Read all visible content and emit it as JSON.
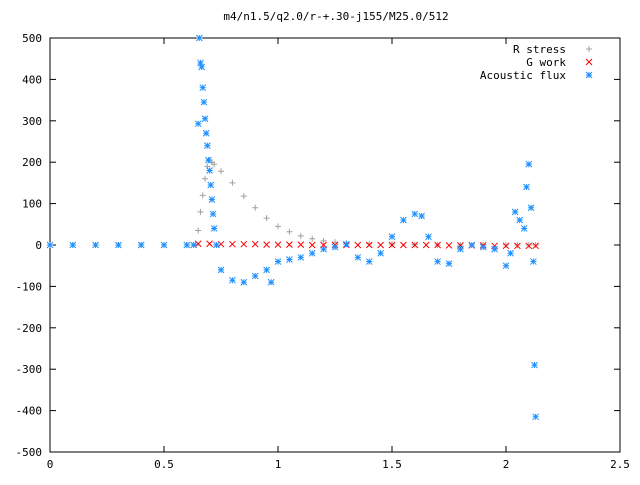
{
  "chart_data": {
    "type": "scatter",
    "title": "m4/n1.5/q2.0/r-+.30-j155/M25.0/512",
    "xlabel": "",
    "ylabel": "",
    "xlim": [
      0,
      2.5
    ],
    "ylim": [
      -500,
      500
    ],
    "x_ticks": [
      0,
      0.5,
      1,
      1.5,
      2,
      2.5
    ],
    "x_tick_labels": [
      "0",
      "0.5",
      "1",
      "1.5",
      "2",
      "2.5"
    ],
    "y_ticks": [
      -500,
      -400,
      -300,
      -200,
      -100,
      0,
      100,
      200,
      300,
      400,
      500
    ],
    "y_tick_labels": [
      "-500",
      "-400",
      "-300",
      "-200",
      "-100",
      "0",
      "100",
      "200",
      "300",
      "400",
      "500"
    ],
    "grid": false,
    "legend_position": "top-right",
    "series": [
      {
        "name": "R stress",
        "marker": "+",
        "color": "#a0a0a0",
        "x": [
          0,
          0.1,
          0.2,
          0.3,
          0.4,
          0.5,
          0.6,
          0.64,
          0.65,
          0.66,
          0.67,
          0.68,
          0.69,
          0.7,
          0.71,
          0.72,
          0.75,
          0.8,
          0.85,
          0.9,
          0.95,
          1.0,
          1.05,
          1.1,
          1.15,
          1.2,
          1.25,
          1.3,
          1.4,
          1.5,
          1.6,
          1.7,
          1.8,
          1.9,
          2.0,
          2.05,
          2.1,
          2.13
        ],
        "y": [
          0,
          0,
          0,
          0,
          0,
          0,
          0,
          0,
          35,
          80,
          120,
          160,
          190,
          205,
          200,
          195,
          178,
          150,
          118,
          90,
          65,
          45,
          32,
          22,
          15,
          10,
          7,
          5,
          3,
          2,
          1,
          0,
          0,
          0,
          0,
          0,
          0,
          0
        ]
      },
      {
        "name": "G work",
        "marker": "x",
        "color": "#ff0000",
        "x": [
          0.65,
          0.7,
          0.75,
          0.8,
          0.85,
          0.9,
          0.95,
          1.0,
          1.05,
          1.1,
          1.15,
          1.2,
          1.25,
          1.3,
          1.35,
          1.4,
          1.45,
          1.5,
          1.55,
          1.6,
          1.65,
          1.7,
          1.75,
          1.8,
          1.85,
          1.9,
          1.95,
          2.0,
          2.05,
          2.1,
          2.13
        ],
        "y": [
          3,
          3,
          2,
          2,
          2,
          2,
          1,
          1,
          1,
          1,
          0,
          0,
          0,
          0,
          0,
          0,
          0,
          0,
          0,
          0,
          0,
          0,
          -1,
          -1,
          -1,
          -1,
          -2,
          -2,
          -2,
          -2,
          -2
        ]
      },
      {
        "name": "Acoustic flux",
        "marker": "*",
        "color": "#1e90ff",
        "x": [
          0,
          0.1,
          0.2,
          0.3,
          0.4,
          0.5,
          0.6,
          0.63,
          0.65,
          0.655,
          0.66,
          0.665,
          0.67,
          0.675,
          0.68,
          0.685,
          0.69,
          0.695,
          0.7,
          0.705,
          0.71,
          0.715,
          0.72,
          0.73,
          0.75,
          0.8,
          0.85,
          0.9,
          0.95,
          0.97,
          1.0,
          1.05,
          1.1,
          1.15,
          1.2,
          1.25,
          1.3,
          1.35,
          1.4,
          1.45,
          1.5,
          1.55,
          1.6,
          1.63,
          1.66,
          1.7,
          1.75,
          1.8,
          1.85,
          1.9,
          1.95,
          2.0,
          2.02,
          2.04,
          2.06,
          2.08,
          2.09,
          2.1,
          2.11,
          2.12,
          2.125,
          2.13
        ],
        "y": [
          0,
          0,
          0,
          0,
          0,
          0,
          0,
          0,
          293,
          500,
          440,
          430,
          380,
          345,
          305,
          270,
          240,
          205,
          180,
          145,
          110,
          75,
          40,
          0,
          -60,
          -85,
          -90,
          -75,
          -60,
          -90,
          -40,
          -35,
          -30,
          -20,
          -10,
          -5,
          2,
          -30,
          -40,
          -20,
          20,
          60,
          75,
          70,
          20,
          -40,
          -45,
          -10,
          0,
          -5,
          -10,
          -50,
          -20,
          80,
          60,
          40,
          140,
          195,
          90,
          -40,
          -290,
          -415
        ]
      }
    ]
  }
}
